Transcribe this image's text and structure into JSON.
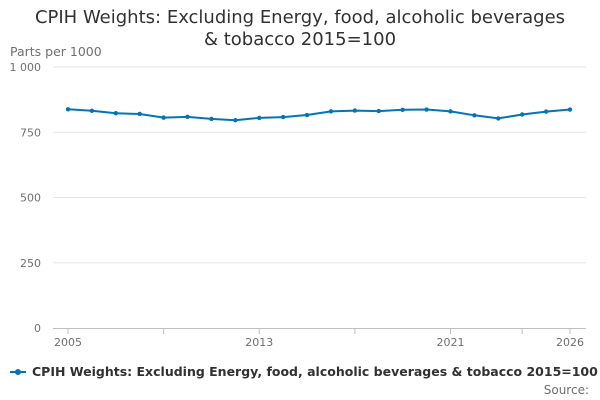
{
  "chart_data": {
    "type": "line",
    "title": "CPIH Weights: Excluding Energy, food, alcoholic beverages & tobacco 2015=100",
    "title_lines": [
      "CPIH Weights: Excluding Energy, food, alcoholic beverages",
      "& tobacco 2015=100"
    ],
    "ylabel": "Parts per 1000",
    "xlabel": "",
    "ylim": [
      0,
      1000
    ],
    "xlim": [
      2005,
      2026
    ],
    "yticks": [
      0,
      250,
      500,
      750,
      1000
    ],
    "ytick_labels": [
      "0",
      "250",
      "500",
      "750",
      "1 000"
    ],
    "xticks_labeled": [
      2005,
      2013,
      2021,
      2026
    ],
    "xtick_labels": [
      "2005",
      "2013",
      "2021",
      "2026"
    ],
    "xticks_minor": [
      2005,
      2009,
      2013,
      2017,
      2021,
      2024,
      2026
    ],
    "grid": true,
    "legend_position": "bottom-left",
    "series": [
      {
        "name": "CPIH Weights: Excluding Energy, food, alcoholic beverages & tobacco 2015=100",
        "color": "#0075b8",
        "x": [
          2005,
          2006,
          2007,
          2008,
          2009,
          2010,
          2011,
          2012,
          2013,
          2014,
          2015,
          2016,
          2017,
          2018,
          2019,
          2020,
          2021,
          2022,
          2023,
          2024,
          2025,
          2026
        ],
        "values": [
          838,
          832,
          823,
          820,
          806,
          809,
          801,
          796,
          805,
          808,
          816,
          830,
          833,
          831,
          836,
          837,
          830,
          815,
          803,
          818,
          829,
          837
        ]
      }
    ]
  },
  "source": {
    "label": "Source:"
  }
}
